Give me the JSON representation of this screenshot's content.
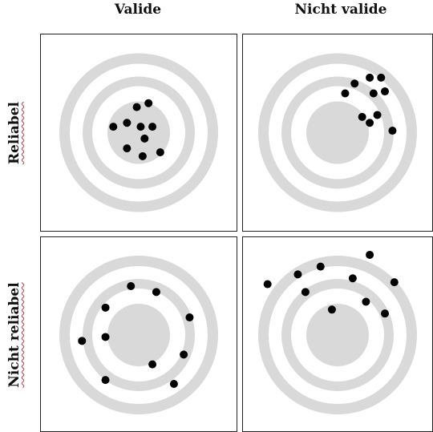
{
  "columns": [
    {
      "label": "Valide"
    },
    {
      "label": "Nicht valide"
    }
  ],
  "rows": [
    {
      "label": "Reliabel"
    },
    {
      "label": "Nicht reliabel"
    }
  ],
  "colors": {
    "ring": "#d9d9d9",
    "dot": "#000000",
    "border": "#222222"
  },
  "panels": [
    {
      "id": "reliable-valid",
      "shots": [
        [
          0.49,
          0.37
        ],
        [
          0.55,
          0.35
        ],
        [
          0.37,
          0.47
        ],
        [
          0.44,
          0.45
        ],
        [
          0.51,
          0.47
        ],
        [
          0.57,
          0.47
        ],
        [
          0.53,
          0.53
        ],
        [
          0.44,
          0.58
        ],
        [
          0.52,
          0.62
        ],
        [
          0.61,
          0.6
        ]
      ]
    },
    {
      "id": "reliable-not-valid",
      "shots": [
        [
          0.59,
          0.25
        ],
        [
          0.67,
          0.22
        ],
        [
          0.73,
          0.22
        ],
        [
          0.54,
          0.3
        ],
        [
          0.69,
          0.3
        ],
        [
          0.75,
          0.29
        ],
        [
          0.63,
          0.42
        ],
        [
          0.71,
          0.41
        ],
        [
          0.67,
          0.45
        ],
        [
          0.79,
          0.49
        ]
      ]
    },
    {
      "id": "not-reliable-valid",
      "shots": [
        [
          0.46,
          0.25
        ],
        [
          0.59,
          0.28
        ],
        [
          0.33,
          0.36
        ],
        [
          0.76,
          0.41
        ],
        [
          0.21,
          0.53
        ],
        [
          0.33,
          0.51
        ],
        [
          0.73,
          0.6
        ],
        [
          0.57,
          0.65
        ],
        [
          0.33,
          0.73
        ],
        [
          0.68,
          0.75
        ]
      ]
    },
    {
      "id": "not-reliable-not-valid",
      "shots": [
        [
          0.67,
          0.09
        ],
        [
          0.41,
          0.15
        ],
        [
          0.29,
          0.19
        ],
        [
          0.58,
          0.21
        ],
        [
          0.13,
          0.24
        ],
        [
          0.8,
          0.23
        ],
        [
          0.33,
          0.28
        ],
        [
          0.65,
          0.33
        ],
        [
          0.47,
          0.37
        ],
        [
          0.75,
          0.39
        ]
      ]
    }
  ]
}
